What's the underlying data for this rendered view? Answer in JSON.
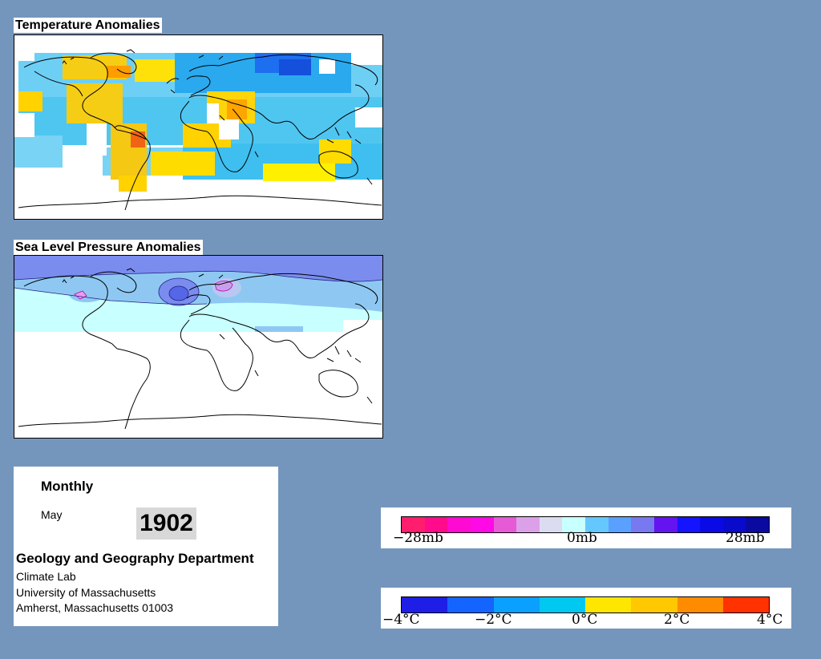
{
  "maps": {
    "temperature_title": "Temperature Anomalies",
    "pressure_title": "Sea Level Pressure Anomalies"
  },
  "info": {
    "period": "Monthly",
    "month": "May",
    "year": "1902",
    "department": "Geology and Geography Department",
    "lab": "Climate Lab",
    "university": "University of Massachusetts",
    "address": "Amherst, Massachusetts 01003"
  },
  "pressure_legend": {
    "labels": [
      "−28mb",
      "0mb",
      "28mb"
    ],
    "colors": [
      "#ff1e6e",
      "#ff0b8c",
      "#ff0ad2",
      "#ff0ae6",
      "#e65ad6",
      "#dca0e8",
      "#dcdcf0",
      "#c8ffff",
      "#64c8ff",
      "#5aa0ff",
      "#7878f0",
      "#6414f0",
      "#1414ff",
      "#0a0ae6",
      "#0a0acd",
      "#0a0aa0"
    ]
  },
  "temperature_legend": {
    "labels": [
      "−4°C",
      "−2°C",
      "0°C",
      "2°C",
      "4°C"
    ],
    "colors": [
      "#1e1ee6",
      "#1464ff",
      "#0aa0ff",
      "#00c8f0",
      "#ffe600",
      "#ffc800",
      "#ff8c00",
      "#ff3200"
    ]
  }
}
